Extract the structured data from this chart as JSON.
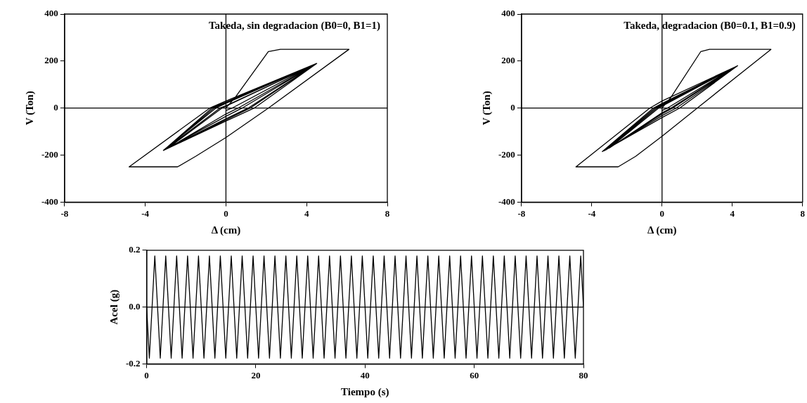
{
  "chart_data": [
    {
      "type": "line",
      "title": "Takeda, sin degradacion (B0=0, B1=1)",
      "xlabel": "Δ (cm)",
      "ylabel": "V (Ton)",
      "xlim": [
        -8,
        8
      ],
      "xticks": [
        -8,
        -4,
        0,
        4,
        8
      ],
      "ylim": [
        -400,
        400
      ],
      "yticks": [
        -400,
        -200,
        0,
        200,
        400
      ],
      "marker": "none",
      "legend": false,
      "ref_lines": [
        {
          "axis": "x",
          "value": 0
        },
        {
          "axis": "y",
          "value": 0
        }
      ],
      "series": [
        {
          "color": "#000000",
          "x": [
            0,
            0.5,
            2.1,
            2.7,
            6.1,
            2.1,
            0,
            -1.5,
            -2.4,
            -4.8,
            -0.8,
            0,
            4.5,
            1.4,
            0,
            -3.1,
            -0.7,
            0,
            4.5,
            1.1,
            0,
            -3.1,
            -0.5,
            0,
            4.5,
            0.8,
            0,
            -3.0,
            -0.3,
            0,
            4.4,
            1.2,
            0,
            -3.1,
            -0.6,
            0,
            4.5,
            0.6,
            0,
            -2.9,
            -0.2,
            0,
            4.3,
            0.3,
            0
          ],
          "values": [
            0,
            50,
            240,
            250,
            250,
            0,
            -125,
            -205,
            -250,
            -250,
            0,
            30,
            190,
            0,
            -55,
            -180,
            0,
            25,
            190,
            0,
            -45,
            -180,
            0,
            20,
            190,
            0,
            -35,
            -175,
            0,
            10,
            185,
            0,
            -50,
            -180,
            0,
            22,
            190,
            0,
            -25,
            -172,
            0,
            8,
            182,
            0,
            -10
          ]
        }
      ]
    },
    {
      "type": "line",
      "title": "Takeda, degradacion (B0=0.1, B1=0.9)",
      "xlabel": "Δ (cm)",
      "ylabel": "V (Ton)",
      "xlim": [
        -8,
        8
      ],
      "xticks": [
        -8,
        -4,
        0,
        4,
        8
      ],
      "ylim": [
        -400,
        400
      ],
      "yticks": [
        -400,
        -200,
        0,
        200,
        400
      ],
      "marker": "none",
      "legend": false,
      "ref_lines": [
        {
          "axis": "x",
          "value": 0
        },
        {
          "axis": "y",
          "value": 0
        }
      ],
      "series": [
        {
          "color": "#000000",
          "x": [
            0,
            0.5,
            2.2,
            2.7,
            6.2,
            2.0,
            0,
            -1.5,
            -2.5,
            -4.9,
            -0.7,
            0,
            4.3,
            1.0,
            0,
            -3.4,
            -0.5,
            0,
            4.3,
            0.8,
            0,
            -3.3,
            -0.4,
            0,
            4.2,
            0.6,
            0,
            -3.2,
            -0.3,
            0,
            4.2,
            0.5,
            0,
            -3.0,
            -0.2,
            0,
            4.0,
            0.3,
            0
          ],
          "values": [
            0,
            45,
            240,
            250,
            250,
            0,
            -120,
            -205,
            -250,
            -250,
            0,
            30,
            180,
            0,
            -40,
            -185,
            0,
            20,
            180,
            0,
            -32,
            -182,
            0,
            16,
            176,
            0,
            -25,
            -178,
            0,
            12,
            176,
            0,
            -20,
            -170,
            0,
            8,
            168,
            0,
            -10
          ]
        }
      ]
    },
    {
      "type": "line",
      "xlabel": "Tiempo (s)",
      "ylabel": "Acel (g)",
      "xlim": [
        0,
        80
      ],
      "xticks": [
        0,
        20,
        40,
        60,
        80
      ],
      "ylim": [
        -0.2,
        0.2
      ],
      "yticks": [
        -0.2,
        {
          "value": 0,
          "label": "0.0"
        },
        0.2
      ],
      "marker": "none",
      "legend": false,
      "ref_lines": [
        {
          "axis": "y",
          "value": 0
        }
      ],
      "series": [
        {
          "color": "#000000",
          "x": [
            0,
            0.5,
            1.5,
            2.5,
            3.5,
            4.5,
            5.5,
            6.5,
            7.5,
            8.5,
            9.5,
            10.5,
            11.5,
            12.5,
            13.5,
            14.5,
            15.5,
            16.5,
            17.5,
            18.5,
            19.5,
            20.5,
            21.5,
            22.5,
            23.5,
            24.5,
            25.5,
            26.5,
            27.5,
            28.5,
            29.5,
            30.5,
            31.5,
            32.5,
            33.5,
            34.5,
            35.5,
            36.5,
            37.5,
            38.5,
            39.5,
            40.5,
            41.5,
            42.5,
            43.5,
            44.5,
            45.5,
            46.5,
            47.5,
            48.5,
            49.5,
            50.5,
            51.5,
            52.5,
            53.5,
            54.5,
            55.5,
            56.5,
            57.5,
            58.5,
            59.5,
            60.5,
            61.5,
            62.5,
            63.5,
            64.5,
            65.5,
            66.5,
            67.5,
            68.5,
            69.5,
            70.5,
            71.5,
            72.5,
            73.5,
            74.5,
            75.5,
            76.5,
            77.5,
            78.5,
            79.5,
            80
          ],
          "values": [
            0,
            -0.18,
            0.18,
            -0.18,
            0.18,
            -0.18,
            0.18,
            -0.18,
            0.18,
            -0.18,
            0.18,
            -0.18,
            0.18,
            -0.18,
            0.18,
            -0.18,
            0.18,
            -0.18,
            0.18,
            -0.18,
            0.18,
            -0.18,
            0.18,
            -0.18,
            0.18,
            -0.18,
            0.18,
            -0.18,
            0.18,
            -0.18,
            0.18,
            -0.18,
            0.18,
            -0.18,
            0.18,
            -0.18,
            0.18,
            -0.18,
            0.18,
            -0.18,
            0.18,
            -0.18,
            0.18,
            -0.18,
            0.18,
            -0.18,
            0.18,
            -0.18,
            0.18,
            -0.18,
            0.18,
            -0.18,
            0.18,
            -0.18,
            0.18,
            -0.18,
            0.18,
            -0.18,
            0.18,
            -0.18,
            0.18,
            -0.18,
            0.18,
            -0.18,
            0.18,
            -0.18,
            0.18,
            -0.18,
            0.18,
            -0.18,
            0.18,
            -0.18,
            0.18,
            -0.18,
            0.18,
            -0.18,
            0.18,
            -0.18,
            0.18,
            -0.18,
            0.18,
            0
          ]
        }
      ]
    }
  ]
}
